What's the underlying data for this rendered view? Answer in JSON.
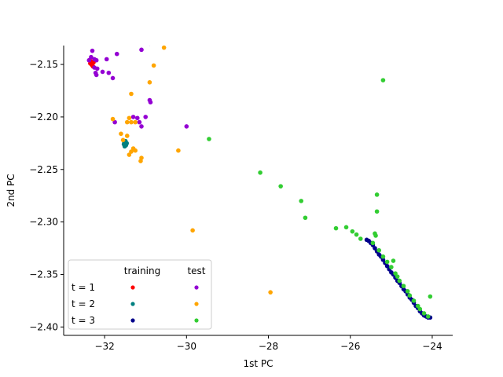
{
  "chart_data": {
    "type": "scatter",
    "xlabel": "1st PC",
    "ylabel": "2nd PC",
    "xlim": [
      -33.0,
      -23.5
    ],
    "ylim": [
      -2.408,
      -2.132
    ],
    "xticks": [
      -32,
      -30,
      -28,
      -26,
      -24
    ],
    "xtick_labels": [
      "−32",
      "−30",
      "−28",
      "−26",
      "−24"
    ],
    "yticks": [
      -2.15,
      -2.2,
      -2.25,
      -2.3,
      -2.35,
      -2.4
    ],
    "ytick_labels": [
      "−2.15",
      "−2.20",
      "−2.25",
      "−2.30",
      "−2.35",
      "−2.40"
    ],
    "grid": false,
    "legend": {
      "placement": "lower-left",
      "headers": [
        "training",
        "test"
      ],
      "rows": [
        "t = 1",
        "t = 2",
        "t = 3"
      ]
    },
    "series": [
      {
        "group": "training",
        "t": "t = 1",
        "color": "#ff0000",
        "points": [
          [
            -32.35,
            -2.149
          ],
          [
            -32.3,
            -2.151
          ],
          [
            -32.27,
            -2.148
          ],
          [
            -32.32,
            -2.15
          ],
          [
            -32.28,
            -2.152
          ],
          [
            -32.33,
            -2.147
          ]
        ]
      },
      {
        "group": "training",
        "t": "t = 2",
        "color": "#008080",
        "points": [
          [
            -31.5,
            -2.225
          ],
          [
            -31.48,
            -2.227
          ],
          [
            -31.52,
            -2.224
          ],
          [
            -31.47,
            -2.226
          ],
          [
            -31.51,
            -2.228
          ],
          [
            -31.49,
            -2.223
          ],
          [
            -31.53,
            -2.226
          ],
          [
            -31.46,
            -2.225
          ]
        ]
      },
      {
        "group": "training",
        "t": "t = 3",
        "color": "#00008b",
        "points": [
          [
            -25.6,
            -2.317
          ],
          [
            -25.55,
            -2.318
          ],
          [
            -25.5,
            -2.32
          ],
          [
            -25.45,
            -2.322
          ],
          [
            -25.4,
            -2.325
          ],
          [
            -25.35,
            -2.328
          ],
          [
            -25.3,
            -2.331
          ],
          [
            -25.25,
            -2.333
          ],
          [
            -25.2,
            -2.336
          ],
          [
            -25.15,
            -2.339
          ],
          [
            -25.1,
            -2.342
          ],
          [
            -25.05,
            -2.345
          ],
          [
            -25.0,
            -2.348
          ],
          [
            -24.95,
            -2.35
          ],
          [
            -24.9,
            -2.353
          ],
          [
            -24.85,
            -2.356
          ],
          [
            -24.8,
            -2.358
          ],
          [
            -24.75,
            -2.361
          ],
          [
            -24.7,
            -2.364
          ],
          [
            -24.65,
            -2.366
          ],
          [
            -24.6,
            -2.369
          ],
          [
            -24.55,
            -2.372
          ],
          [
            -24.5,
            -2.374
          ],
          [
            -24.45,
            -2.377
          ],
          [
            -24.4,
            -2.38
          ],
          [
            -24.35,
            -2.382
          ],
          [
            -24.3,
            -2.385
          ],
          [
            -24.25,
            -2.387
          ],
          [
            -24.2,
            -2.389
          ],
          [
            -24.15,
            -2.39
          ],
          [
            -24.1,
            -2.391
          ],
          [
            -24.05,
            -2.391
          ]
        ]
      },
      {
        "group": "test",
        "t": "t = 1",
        "color": "#9400d3",
        "points": [
          [
            -32.3,
            -2.137
          ],
          [
            -32.38,
            -2.146
          ],
          [
            -32.33,
            -2.143
          ],
          [
            -32.25,
            -2.145
          ],
          [
            -32.2,
            -2.146
          ],
          [
            -32.25,
            -2.153
          ],
          [
            -32.18,
            -2.154
          ],
          [
            -32.22,
            -2.158
          ],
          [
            -32.2,
            -2.16
          ],
          [
            -32.05,
            -2.157
          ],
          [
            -31.95,
            -2.145
          ],
          [
            -31.9,
            -2.158
          ],
          [
            -31.8,
            -2.163
          ],
          [
            -31.7,
            -2.14
          ],
          [
            -31.75,
            -2.205
          ],
          [
            -31.3,
            -2.2
          ],
          [
            -31.2,
            -2.201
          ],
          [
            -31.15,
            -2.205
          ],
          [
            -31.1,
            -2.209
          ],
          [
            -31.0,
            -2.2
          ],
          [
            -31.1,
            -2.136
          ],
          [
            -30.9,
            -2.13
          ],
          [
            -30.9,
            -2.184
          ],
          [
            -30.88,
            -2.186
          ],
          [
            -30.0,
            -2.209
          ]
        ]
      },
      {
        "group": "test",
        "t": "t = 2",
        "color": "#ffa500",
        "points": [
          [
            -30.55,
            -2.134
          ],
          [
            -30.8,
            -2.151
          ],
          [
            -30.9,
            -2.167
          ],
          [
            -31.35,
            -2.178
          ],
          [
            -31.8,
            -2.202
          ],
          [
            -31.4,
            -2.201
          ],
          [
            -31.45,
            -2.205
          ],
          [
            -31.35,
            -2.205
          ],
          [
            -31.25,
            -2.205
          ],
          [
            -31.6,
            -2.216
          ],
          [
            -31.45,
            -2.218
          ],
          [
            -31.55,
            -2.222
          ],
          [
            -31.3,
            -2.23
          ],
          [
            -31.25,
            -2.232
          ],
          [
            -31.35,
            -2.233
          ],
          [
            -31.4,
            -2.236
          ],
          [
            -31.1,
            -2.239
          ],
          [
            -31.12,
            -2.242
          ],
          [
            -30.2,
            -2.232
          ],
          [
            -29.85,
            -2.308
          ],
          [
            -27.95,
            -2.367
          ]
        ]
      },
      {
        "group": "test",
        "t": "t = 3",
        "color": "#32cd32",
        "points": [
          [
            -25.2,
            -2.165
          ],
          [
            -29.45,
            -2.221
          ],
          [
            -28.2,
            -2.253
          ],
          [
            -27.7,
            -2.266
          ],
          [
            -27.2,
            -2.28
          ],
          [
            -27.1,
            -2.296
          ],
          [
            -26.35,
            -2.306
          ],
          [
            -26.1,
            -2.305
          ],
          [
            -25.95,
            -2.309
          ],
          [
            -25.85,
            -2.312
          ],
          [
            -25.75,
            -2.316
          ],
          [
            -25.4,
            -2.311
          ],
          [
            -25.38,
            -2.313
          ],
          [
            -25.35,
            -2.274
          ],
          [
            -25.35,
            -2.29
          ],
          [
            -24.95,
            -2.337
          ],
          [
            -25.45,
            -2.32
          ],
          [
            -25.3,
            -2.327
          ],
          [
            -25.2,
            -2.333
          ],
          [
            -25.1,
            -2.338
          ],
          [
            -25.0,
            -2.343
          ],
          [
            -24.9,
            -2.349
          ],
          [
            -24.85,
            -2.352
          ],
          [
            -24.8,
            -2.356
          ],
          [
            -24.7,
            -2.361
          ],
          [
            -24.6,
            -2.366
          ],
          [
            -24.55,
            -2.37
          ],
          [
            -24.45,
            -2.375
          ],
          [
            -24.35,
            -2.38
          ],
          [
            -24.3,
            -2.383
          ],
          [
            -24.2,
            -2.387
          ],
          [
            -24.1,
            -2.39
          ],
          [
            -24.05,
            -2.371
          ]
        ]
      }
    ]
  }
}
